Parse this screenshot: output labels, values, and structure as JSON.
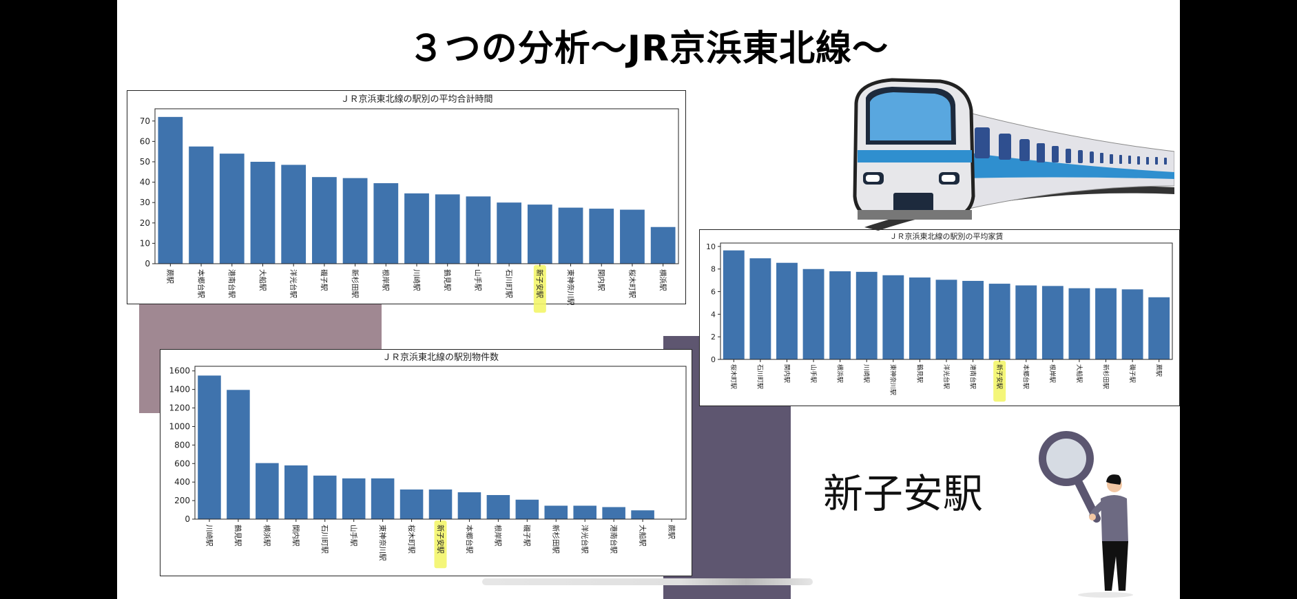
{
  "slide": {
    "title": "３つの分析〜JR京浜東北線〜",
    "station_label": "新子安駅",
    "highlight_station": "新子安駅",
    "colors": {
      "bar": "#3f73ad",
      "highlight": "#f3f56a",
      "deco_mauve": "#a08892",
      "deco_purple": "#5e5670"
    },
    "icons": [
      "train-icon",
      "magnifier-person-icon"
    ]
  },
  "chart_data": [
    {
      "id": "avg-total-time",
      "type": "bar",
      "title": "ＪＲ京浜東北線の駅別の平均合計時間",
      "categories": [
        "蕨駅",
        "本郷台駅",
        "港南台駅",
        "大船駅",
        "洋光台駅",
        "磯子駅",
        "新杉田駅",
        "根岸駅",
        "川崎駅",
        "鶴見駅",
        "山手駅",
        "石川町駅",
        "新子安駅",
        "東神奈川駅",
        "関内駅",
        "桜木町駅",
        "横浜駅"
      ],
      "values": [
        72,
        57.5,
        54,
        50,
        48.5,
        42.5,
        42,
        39.5,
        34.5,
        34,
        33,
        30,
        29,
        27.5,
        27,
        26.5,
        18
      ],
      "yticks": [
        0,
        10,
        20,
        30,
        40,
        50,
        60,
        70
      ],
      "ylim": [
        0,
        76
      ]
    },
    {
      "id": "listing-count",
      "type": "bar",
      "title": "ＪＲ京浜東北線の駅別物件数",
      "categories": [
        "川崎駅",
        "鶴見駅",
        "横浜駅",
        "関内駅",
        "石川町駅",
        "山手駅",
        "東神奈川駅",
        "桜木町駅",
        "新子安駅",
        "本郷台駅",
        "根岸駅",
        "磯子駅",
        "新杉田駅",
        "洋光台駅",
        "港南台駅",
        "大船駅",
        "蕨駅"
      ],
      "values": [
        1550,
        1395,
        605,
        580,
        470,
        440,
        440,
        320,
        320,
        290,
        260,
        210,
        145,
        145,
        130,
        95,
        2
      ],
      "yticks": [
        0,
        200,
        400,
        600,
        800,
        1000,
        1200,
        1400,
        1600
      ],
      "ylim": [
        0,
        1650
      ]
    },
    {
      "id": "avg-rent",
      "type": "bar",
      "title": "ＪＲ京浜東北線の駅別の平均家賃",
      "categories": [
        "桜木町駅",
        "石川町駅",
        "関内駅",
        "山手駅",
        "横浜駅",
        "川崎駅",
        "東神奈川駅",
        "鶴見駅",
        "洋光台駅",
        "港南台駅",
        "新子安駅",
        "本郷台駅",
        "根岸駅",
        "大船駅",
        "新杉田駅",
        "磯子駅",
        "蕨駅"
      ],
      "values": [
        9.65,
        8.95,
        8.55,
        8.0,
        7.8,
        7.75,
        7.45,
        7.25,
        7.05,
        6.95,
        6.7,
        6.55,
        6.5,
        6.3,
        6.3,
        6.2,
        5.5
      ],
      "yticks": [
        0,
        2,
        4,
        6,
        8,
        10
      ],
      "ylim": [
        0,
        10.3
      ]
    }
  ]
}
